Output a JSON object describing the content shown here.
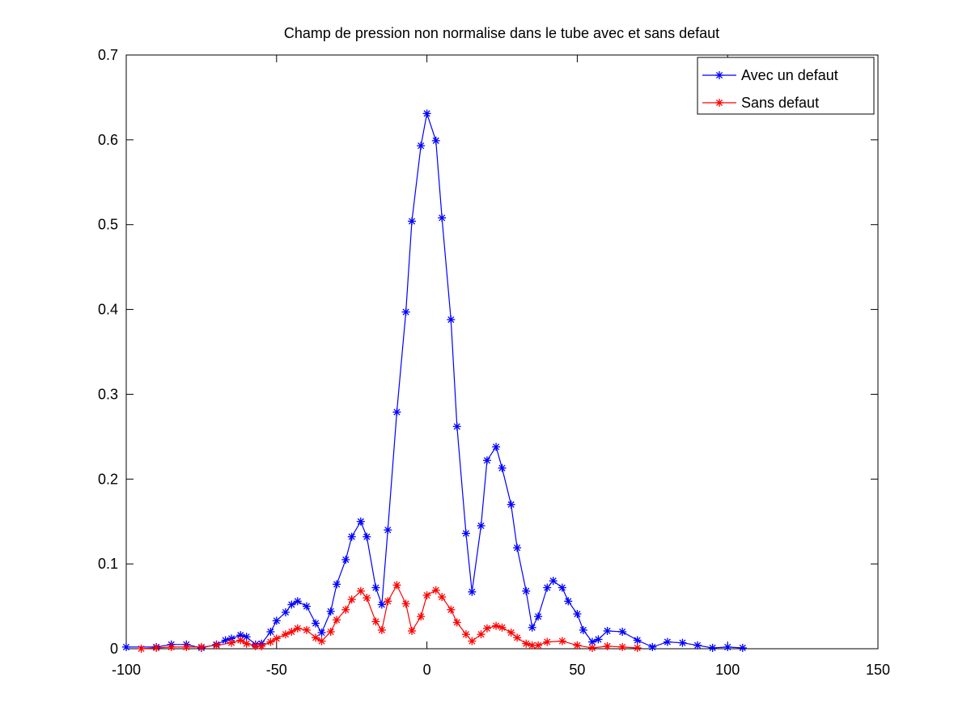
{
  "chart_data": {
    "type": "line",
    "title": "Champ de pression non normalise dans le tube avec et sans defaut",
    "xlabel": "",
    "ylabel": "",
    "xlim": [
      -100,
      150
    ],
    "ylim": [
      0,
      0.7
    ],
    "xticks": [
      -100,
      -50,
      0,
      50,
      100,
      150
    ],
    "xtick_labels": [
      "-100",
      "-50",
      "0",
      "50",
      "100",
      "150"
    ],
    "yticks": [
      0,
      0.1,
      0.2,
      0.3,
      0.4,
      0.5,
      0.6,
      0.7
    ],
    "ytick_labels": [
      "0",
      "0.1",
      "0.2",
      "0.3",
      "0.4",
      "0.5",
      "0.6",
      "0.7"
    ],
    "grid": false,
    "legend_position": "top-right",
    "series": [
      {
        "name": "Avec un defaut",
        "color": "#0000ff",
        "marker": "asterisk",
        "points": [
          [
            -100,
            0.002
          ],
          [
            -90,
            0.002
          ],
          [
            -85,
            0.005
          ],
          [
            -80,
            0.005
          ],
          [
            -75,
            0.001
          ],
          [
            -70,
            0.005
          ],
          [
            -67,
            0.01
          ],
          [
            -65,
            0.012
          ],
          [
            -62,
            0.016
          ],
          [
            -60,
            0.014
          ],
          [
            -57,
            0.005
          ],
          [
            -55,
            0.006
          ],
          [
            -52,
            0.02
          ],
          [
            -50,
            0.033
          ],
          [
            -47,
            0.043
          ],
          [
            -45,
            0.052
          ],
          [
            -43,
            0.056
          ],
          [
            -40,
            0.05
          ],
          [
            -37,
            0.03
          ],
          [
            -35,
            0.019
          ],
          [
            -32,
            0.044
          ],
          [
            -30,
            0.076
          ],
          [
            -27,
            0.105
          ],
          [
            -25,
            0.132
          ],
          [
            -22,
            0.15
          ],
          [
            -20,
            0.132
          ],
          [
            -17,
            0.072
          ],
          [
            -15,
            0.052
          ],
          [
            -13,
            0.14
          ],
          [
            -10,
            0.279
          ],
          [
            -7,
            0.397
          ],
          [
            -5,
            0.504
          ],
          [
            -2,
            0.593
          ],
          [
            0,
            0.631
          ],
          [
            3,
            0.599
          ],
          [
            5,
            0.508
          ],
          [
            8,
            0.388
          ],
          [
            10,
            0.262
          ],
          [
            13,
            0.136
          ],
          [
            15,
            0.067
          ],
          [
            18,
            0.145
          ],
          [
            20,
            0.222
          ],
          [
            23,
            0.238
          ],
          [
            25,
            0.213
          ],
          [
            28,
            0.17
          ],
          [
            30,
            0.119
          ],
          [
            33,
            0.068
          ],
          [
            35,
            0.025
          ],
          [
            37,
            0.038
          ],
          [
            40,
            0.072
          ],
          [
            42,
            0.08
          ],
          [
            45,
            0.072
          ],
          [
            47,
            0.056
          ],
          [
            50,
            0.041
          ],
          [
            52,
            0.022
          ],
          [
            55,
            0.008
          ],
          [
            57,
            0.011
          ],
          [
            60,
            0.021
          ],
          [
            65,
            0.02
          ],
          [
            70,
            0.01
          ],
          [
            75,
            0.002
          ],
          [
            80,
            0.008
          ],
          [
            85,
            0.007
          ],
          [
            90,
            0.004
          ],
          [
            95,
            0.001
          ],
          [
            100,
            0.002
          ],
          [
            105,
            0.001
          ]
        ]
      },
      {
        "name": "Sans defaut",
        "color": "#ff0000",
        "marker": "asterisk",
        "points": [
          [
            -95,
            0.0
          ],
          [
            -90,
            0.001
          ],
          [
            -85,
            0.002
          ],
          [
            -80,
            0.002
          ],
          [
            -75,
            0.002
          ],
          [
            -70,
            0.004
          ],
          [
            -65,
            0.007
          ],
          [
            -62,
            0.01
          ],
          [
            -60,
            0.006
          ],
          [
            -57,
            0.003
          ],
          [
            -55,
            0.003
          ],
          [
            -52,
            0.008
          ],
          [
            -50,
            0.012
          ],
          [
            -47,
            0.017
          ],
          [
            -45,
            0.02
          ],
          [
            -43,
            0.024
          ],
          [
            -40,
            0.022
          ],
          [
            -37,
            0.013
          ],
          [
            -35,
            0.009
          ],
          [
            -32,
            0.02
          ],
          [
            -30,
            0.034
          ],
          [
            -27,
            0.046
          ],
          [
            -25,
            0.058
          ],
          [
            -22,
            0.068
          ],
          [
            -20,
            0.06
          ],
          [
            -17,
            0.032
          ],
          [
            -15,
            0.022
          ],
          [
            -13,
            0.056
          ],
          [
            -10,
            0.075
          ],
          [
            -7,
            0.053
          ],
          [
            -5,
            0.021
          ],
          [
            -2,
            0.038
          ],
          [
            0,
            0.063
          ],
          [
            3,
            0.069
          ],
          [
            5,
            0.061
          ],
          [
            8,
            0.046
          ],
          [
            10,
            0.031
          ],
          [
            13,
            0.017
          ],
          [
            15,
            0.009
          ],
          [
            18,
            0.017
          ],
          [
            20,
            0.024
          ],
          [
            23,
            0.027
          ],
          [
            25,
            0.025
          ],
          [
            28,
            0.019
          ],
          [
            30,
            0.013
          ],
          [
            33,
            0.006
          ],
          [
            35,
            0.004
          ],
          [
            37,
            0.004
          ],
          [
            40,
            0.008
          ],
          [
            45,
            0.009
          ],
          [
            50,
            0.004
          ],
          [
            55,
            0.001
          ],
          [
            60,
            0.003
          ],
          [
            65,
            0.002
          ],
          [
            70,
            0.001
          ]
        ]
      }
    ]
  }
}
